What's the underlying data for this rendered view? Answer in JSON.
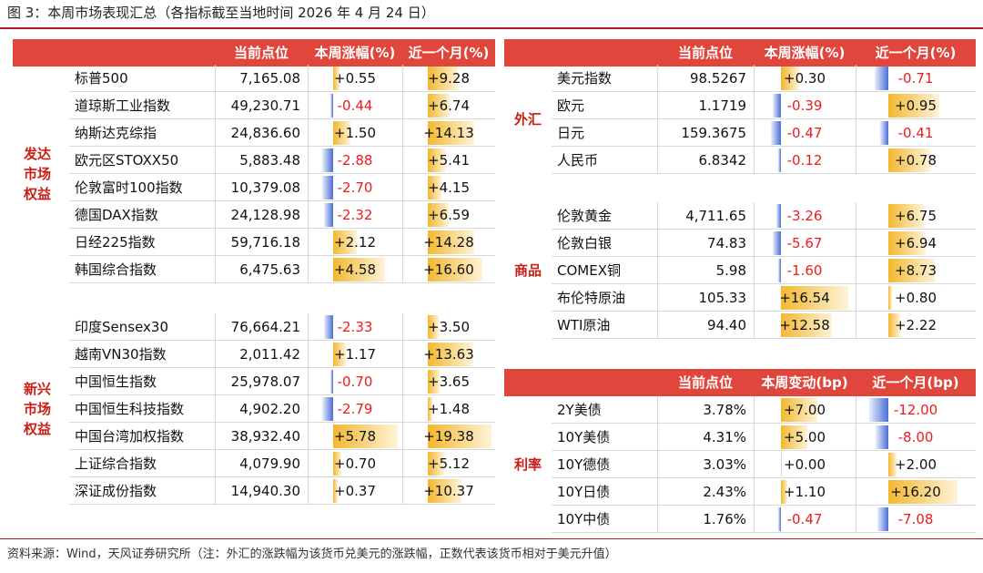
{
  "title": "图 3：本周市场表现汇总（各指标截至当地时间 2026 年 4 月 24 日）",
  "source": "资料来源：Wind，天风证券研究所（注：外汇的涨跌幅为该货币兑美元的涨跌幅，正数代表该货币相对于美元升值）",
  "colors": {
    "header": "#e0463c",
    "accent": "#c91d16",
    "positive_bar": "#f2b82f",
    "negative_bar": "#4a6fd6",
    "negative_text": "#ee1b1b"
  },
  "left_table": {
    "headers": [
      "当前点位",
      "本周涨幅(%)",
      "近一个月(%)"
    ],
    "week_scale": 6.0,
    "month_scale": 20.0,
    "sections": [
      {
        "label": "发达市场权益",
        "label_lines": [
          "发达",
          "市场",
          "权益"
        ],
        "rows": [
          {
            "name": "标普500",
            "level": "7,165.08",
            "week": "+0.55",
            "month": "+9.28",
            "week_v": 0.55,
            "month_v": 9.28
          },
          {
            "name": "道琼斯工业指数",
            "level": "49,230.71",
            "week": "-0.44",
            "month": "+6.74",
            "week_v": -0.44,
            "month_v": 6.74
          },
          {
            "name": "纳斯达克综指",
            "level": "24,836.60",
            "week": "+1.50",
            "month": "+14.13",
            "week_v": 1.5,
            "month_v": 14.13
          },
          {
            "name": "欧元区STOXX50",
            "level": "5,883.48",
            "week": "-2.88",
            "month": "+5.41",
            "week_v": -2.88,
            "month_v": 5.41
          },
          {
            "name": "伦敦富时100指数",
            "level": "10,379.08",
            "week": "-2.70",
            "month": "+4.15",
            "week_v": -2.7,
            "month_v": 4.15
          },
          {
            "name": "德国DAX指数",
            "level": "24,128.98",
            "week": "-2.32",
            "month": "+6.59",
            "week_v": -2.32,
            "month_v": 6.59
          },
          {
            "name": "日经225指数",
            "level": "59,716.18",
            "week": "+2.12",
            "month": "+14.28",
            "week_v": 2.12,
            "month_v": 14.28
          },
          {
            "name": "韩国综合指数",
            "level": "6,475.63",
            "week": "+4.58",
            "month": "+16.60",
            "week_v": 4.58,
            "month_v": 16.6
          }
        ]
      },
      {
        "label": "新兴市场权益",
        "label_lines": [
          "新兴",
          "市场",
          "权益"
        ],
        "rows": [
          {
            "name": "印度Sensex30",
            "level": "76,664.21",
            "week": "-2.33",
            "month": "+3.50",
            "week_v": -2.33,
            "month_v": 3.5
          },
          {
            "name": "越南VN30指数",
            "level": "2,011.42",
            "week": "+1.17",
            "month": "+13.63",
            "week_v": 1.17,
            "month_v": 13.63
          },
          {
            "name": "中国恒生指数",
            "level": "25,978.07",
            "week": "-0.70",
            "month": "+3.65",
            "week_v": -0.7,
            "month_v": 3.65
          },
          {
            "name": "中国恒生科技指数",
            "level": "4,902.20",
            "week": "-2.79",
            "month": "+1.48",
            "week_v": -2.79,
            "month_v": 1.48
          },
          {
            "name": "中国台湾加权指数",
            "level": "38,932.40",
            "week": "+5.78",
            "month": "+19.38",
            "week_v": 5.78,
            "month_v": 19.38
          },
          {
            "name": "上证综合指数",
            "level": "4,079.90",
            "week": "+0.70",
            "month": "+5.12",
            "week_v": 0.7,
            "month_v": 5.12
          },
          {
            "name": "深证成份指数",
            "level": "14,940.30",
            "week": "+0.37",
            "month": "+10.37",
            "week_v": 0.37,
            "month_v": 10.37
          }
        ]
      }
    ]
  },
  "right_top_table": {
    "headers": [
      "当前点位",
      "本周涨幅(%)",
      "近一个月(%)"
    ],
    "sections": [
      {
        "label": "外汇",
        "label_lines": [
          "外汇"
        ],
        "week_scale": 1.2,
        "month_scale": 1.6,
        "rows": [
          {
            "name": "美元指数",
            "level": "98.5267",
            "week": "+0.30",
            "month": "-0.71",
            "week_v": 0.3,
            "month_v": -0.71
          },
          {
            "name": "欧元",
            "level": "1.1719",
            "week": "-0.39",
            "month": "+0.95",
            "week_v": -0.39,
            "month_v": 0.95
          },
          {
            "name": "日元",
            "level": "159.3675",
            "week": "-0.47",
            "month": "-0.41",
            "week_v": -0.47,
            "month_v": -0.41
          },
          {
            "name": "人民币",
            "level": "6.8342",
            "week": "-0.12",
            "month": "+0.78",
            "week_v": -0.12,
            "month_v": 0.78
          }
        ]
      },
      {
        "label": "商品",
        "label_lines": [
          "商品"
        ],
        "week_scale": 18.0,
        "month_scale": 16.0,
        "rows": [
          {
            "name": "伦敦黄金",
            "level": "4,711.65",
            "week": "-3.26",
            "month": "+6.75",
            "week_v": -3.26,
            "month_v": 6.75
          },
          {
            "name": "伦敦白银",
            "level": "74.83",
            "week": "-5.67",
            "month": "+6.94",
            "week_v": -5.67,
            "month_v": 6.94
          },
          {
            "name": "COMEX铜",
            "level": "5.98",
            "week": "-1.60",
            "month": "+8.73",
            "week_v": -1.6,
            "month_v": 8.73
          },
          {
            "name": "布伦特原油",
            "level": "105.33",
            "week": "+16.54",
            "month": "+0.80",
            "week_v": 16.54,
            "month_v": 0.8
          },
          {
            "name": "WTI原油",
            "level": "94.40",
            "week": "+12.58",
            "month": "+2.22",
            "week_v": 12.58,
            "month_v": 2.22
          }
        ]
      }
    ]
  },
  "right_bottom_table": {
    "headers": [
      "当前点位",
      "本周变动(bp)",
      "近一个月(bp)"
    ],
    "sections": [
      {
        "label": "利率",
        "label_lines": [
          "利率"
        ],
        "week_scale": 14.0,
        "month_scale": 20.0,
        "rows": [
          {
            "name": "2Y美债",
            "level": "3.78%",
            "week": "+7.00",
            "month": "-12.00",
            "week_v": 7.0,
            "month_v": -12.0
          },
          {
            "name": "10Y美债",
            "level": "4.31%",
            "week": "+5.00",
            "month": "-8.00",
            "week_v": 5.0,
            "month_v": -8.0
          },
          {
            "name": "10Y德债",
            "level": "3.03%",
            "week": "+0.00",
            "month": "+2.00",
            "week_v": 0.0,
            "month_v": 2.0
          },
          {
            "name": "10Y日债",
            "level": "2.43%",
            "week": "+1.10",
            "month": "+16.20",
            "week_v": 1.1,
            "month_v": 16.2
          },
          {
            "name": "10Y中债",
            "level": "1.76%",
            "week": "-0.47",
            "month": "-7.08",
            "week_v": -0.47,
            "month_v": -7.08
          }
        ]
      }
    ]
  }
}
